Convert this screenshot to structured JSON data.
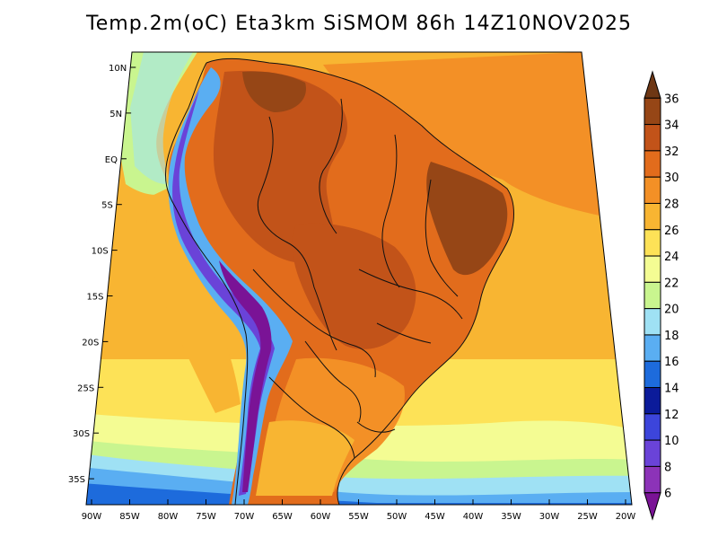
{
  "title": "Temp.2m(oC) Eta3km SiSMOM 86h 14Z10NOV2025",
  "lat_labels": [
    "10N",
    "5N",
    "EQ",
    "5S",
    "10S",
    "15S",
    "20S",
    "25S",
    "30S",
    "35S"
  ],
  "lon_labels": [
    "90W",
    "85W",
    "80W",
    "75W",
    "70W",
    "65W",
    "60W",
    "55W",
    "50W",
    "45W",
    "40W",
    "35W",
    "30W",
    "25W",
    "20W"
  ],
  "colorbar": {
    "labels": [
      "36",
      "34",
      "32",
      "30",
      "28",
      "26",
      "24",
      "22",
      "20",
      "18",
      "16",
      "14",
      "12",
      "10",
      "8",
      "6"
    ],
    "colors": [
      "#6e3714",
      "#964616",
      "#c25319",
      "#e26c1c",
      "#f39026",
      "#f8b532",
      "#fde257",
      "#f4fc93",
      "#c9f58f",
      "#9fe1f4",
      "#5aaef2",
      "#1d6bdc",
      "#0b1b9a",
      "#3c45db",
      "#6a43d8",
      "#8c33b8",
      "#7a1396"
    ]
  },
  "colors": {
    "ocean_warm": "#f39026",
    "ocean_mid": "#f8b532",
    "ocean_cool": "#fde257",
    "ocean_cold": "#f4fc93",
    "ocean_south1": "#c9f58f",
    "ocean_south2": "#9fe1f4",
    "ocean_south3": "#5aaef2",
    "land_hot": "#c25319",
    "land_warm": "#e26c1c",
    "land_hottest": "#964616",
    "andes_cold": "#1d6bdc",
    "andes_coldest": "#6a43d8"
  }
}
